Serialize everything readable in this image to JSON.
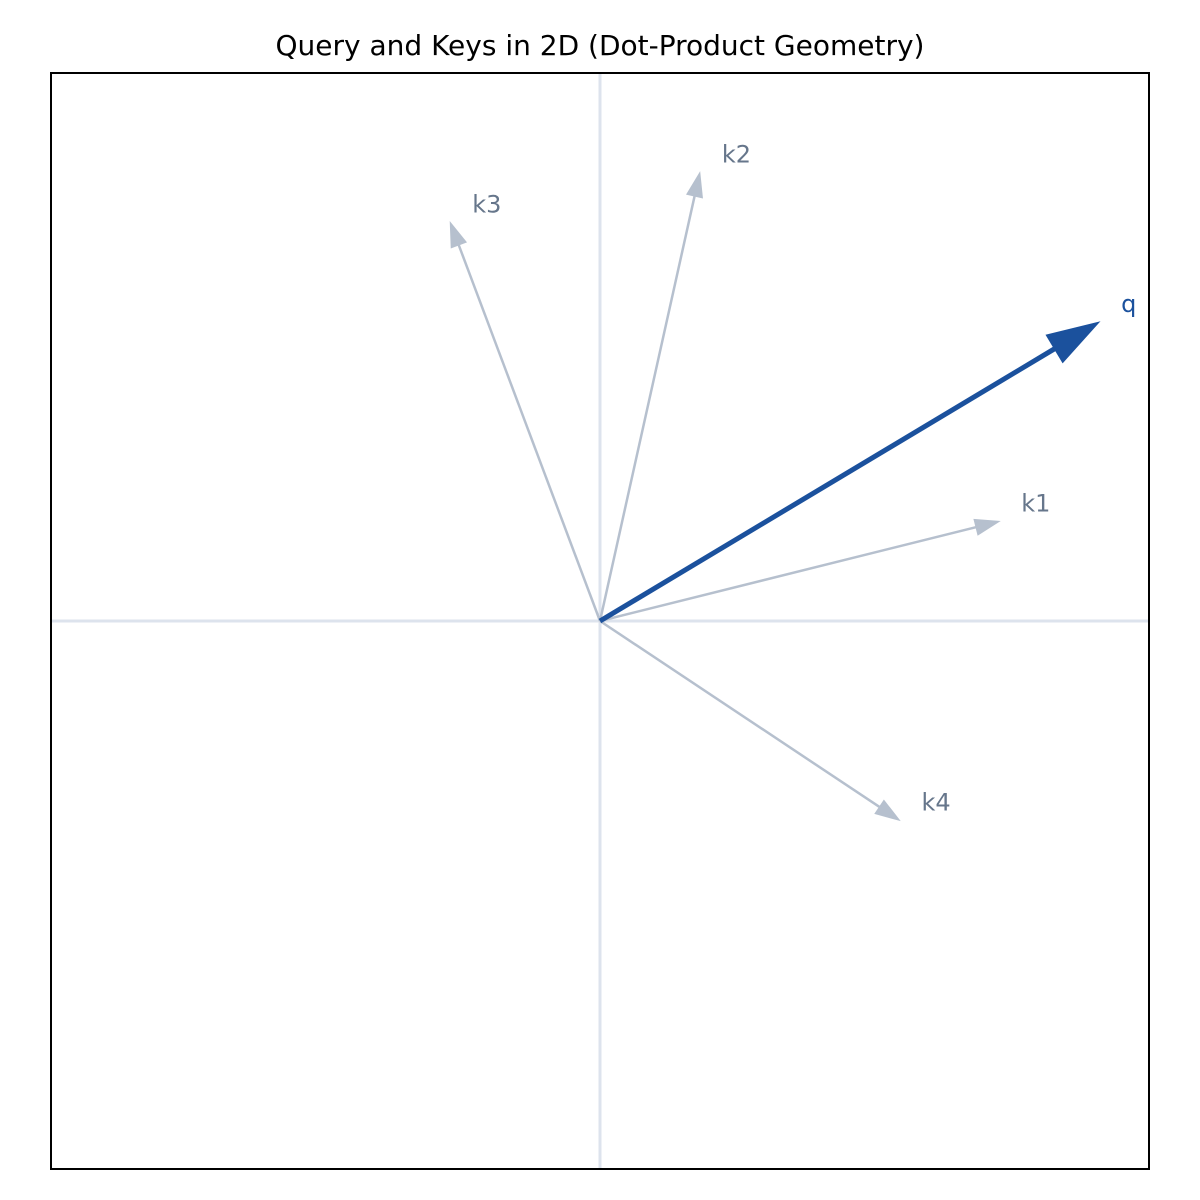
{
  "chart_data": {
    "type": "vector",
    "title": "Query and Keys in 2D (Dot-Product Geometry)",
    "xlabel": "",
    "ylabel": "",
    "xlim": [
      -1.1,
      1.1
    ],
    "ylim": [
      -1.1,
      1.1
    ],
    "grid": false,
    "axes_lines_at_origin": true,
    "axis_line_color": "#dde3ed",
    "frame_color": "#000000",
    "vectors": [
      {
        "id": "q",
        "label": "q",
        "x": 1.0,
        "y": 0.6,
        "color": "#1b519d",
        "emphasis": true
      },
      {
        "id": "k1",
        "label": "k1",
        "x": 0.8,
        "y": 0.2,
        "color": "#b6c0ce",
        "emphasis": false
      },
      {
        "id": "k2",
        "label": "k2",
        "x": 0.2,
        "y": 0.9,
        "color": "#b6c0ce",
        "emphasis": false
      },
      {
        "id": "k3",
        "label": "k3",
        "x": -0.3,
        "y": 0.8,
        "color": "#b6c0ce",
        "emphasis": false
      },
      {
        "id": "k4",
        "label": "k4",
        "x": 0.6,
        "y": -0.4,
        "color": "#b6c0ce",
        "emphasis": false
      }
    ],
    "label_colors": {
      "query": "#1b519d",
      "key": "#66768b"
    }
  }
}
